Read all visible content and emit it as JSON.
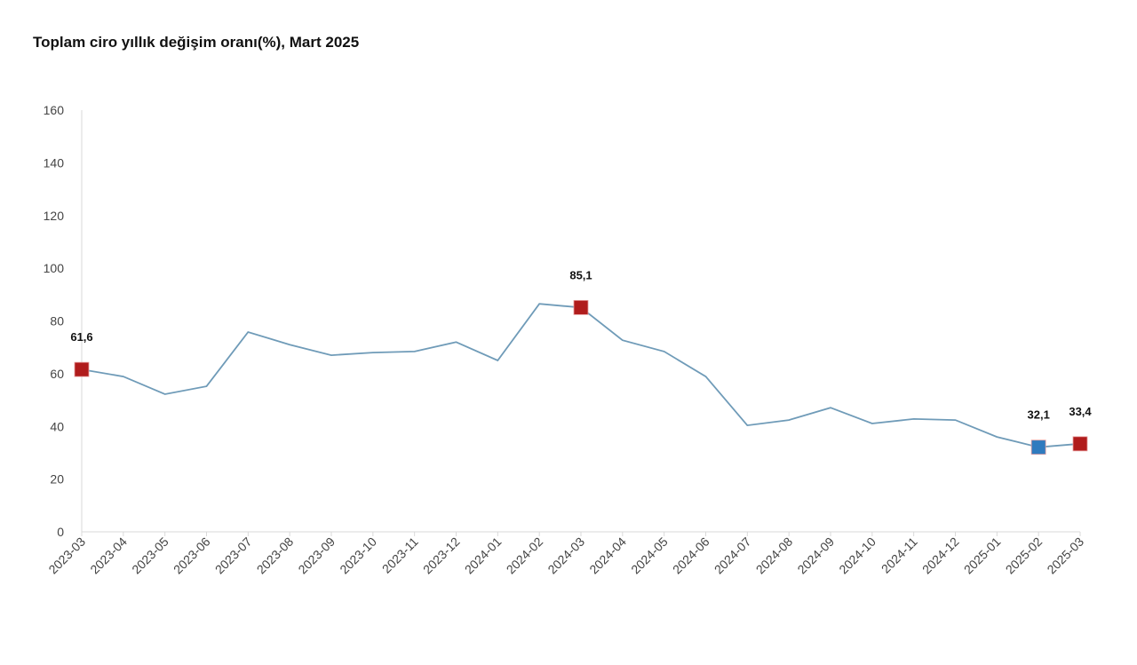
{
  "chart_data": {
    "type": "line",
    "title": "Toplam ciro yıllık değişim oranı(%), Mart 2025",
    "xlabel": "",
    "ylabel": "",
    "ylim": [
      0,
      160
    ],
    "yticks": [
      "0",
      "20",
      "40",
      "60",
      "80",
      "100",
      "120",
      "140",
      "160"
    ],
    "categories": [
      "2023-03",
      "2023-04",
      "2023-05",
      "2023-06",
      "2023-07",
      "2023-08",
      "2023-09",
      "2023-10",
      "2023-11",
      "2023-12",
      "2024-01",
      "2024-02",
      "2024-03",
      "2024-04",
      "2024-05",
      "2024-06",
      "2024-07",
      "2024-08",
      "2024-09",
      "2024-10",
      "2024-11",
      "2024-12",
      "2025-01",
      "2025-02",
      "2025-03"
    ],
    "values": [
      61.6,
      58.9,
      52.2,
      55.2,
      75.8,
      71,
      67,
      68,
      68.4,
      72,
      65,
      86.5,
      85.1,
      72.7,
      68.4,
      58.9,
      40.4,
      42.4,
      47.1,
      41.1,
      42.8,
      42.4,
      36,
      32.1,
      33.4
    ],
    "grid": false,
    "line_color": "#6f9bb8",
    "highlights": [
      {
        "index": 0,
        "label": "61,6",
        "color": "#b01c1c"
      },
      {
        "index": 12,
        "label": "85,1",
        "color": "#b01c1c"
      },
      {
        "index": 23,
        "label": "32,1",
        "color": "#2f7bbf"
      },
      {
        "index": 24,
        "label": "33,4",
        "color": "#b01c1c"
      }
    ]
  }
}
